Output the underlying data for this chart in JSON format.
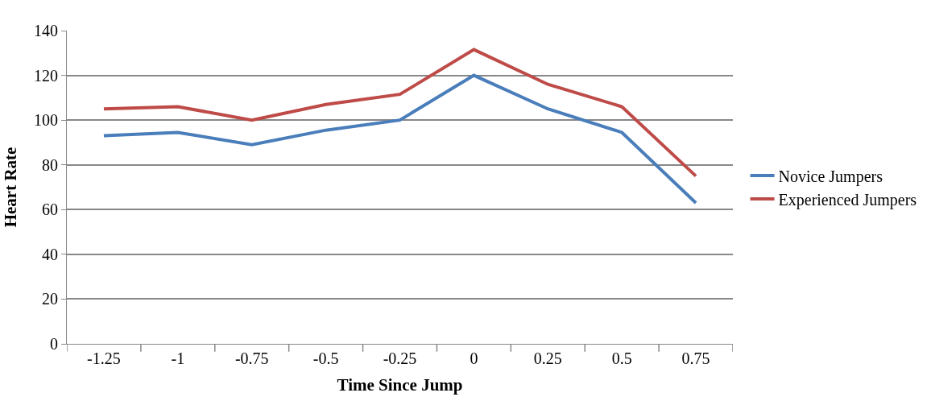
{
  "chart_data": {
    "type": "line",
    "xlabel": "Time Since Jump",
    "ylabel": "Heart Rate",
    "categories": [
      "-1.25",
      "-1",
      "-0.75",
      "-0.5",
      "-0.25",
      "0",
      "0.25",
      "0.5",
      "0.75"
    ],
    "series": [
      {
        "name": "Novice Jumpers",
        "color": "#4a7ebb",
        "values": [
          93,
          94.5,
          89,
          95.5,
          100,
          120,
          105,
          94.5,
          63
        ]
      },
      {
        "name": "Experienced Jumpers",
        "color": "#be4b48",
        "values": [
          105,
          106,
          100,
          107,
          111.5,
          131.5,
          116,
          106,
          75
        ]
      }
    ],
    "ylim": [
      0,
      140
    ],
    "yticks": [
      0,
      20,
      40,
      60,
      80,
      100,
      120,
      140
    ],
    "grid": "y",
    "legend": "right",
    "marker": "none",
    "line_style": "solid"
  }
}
